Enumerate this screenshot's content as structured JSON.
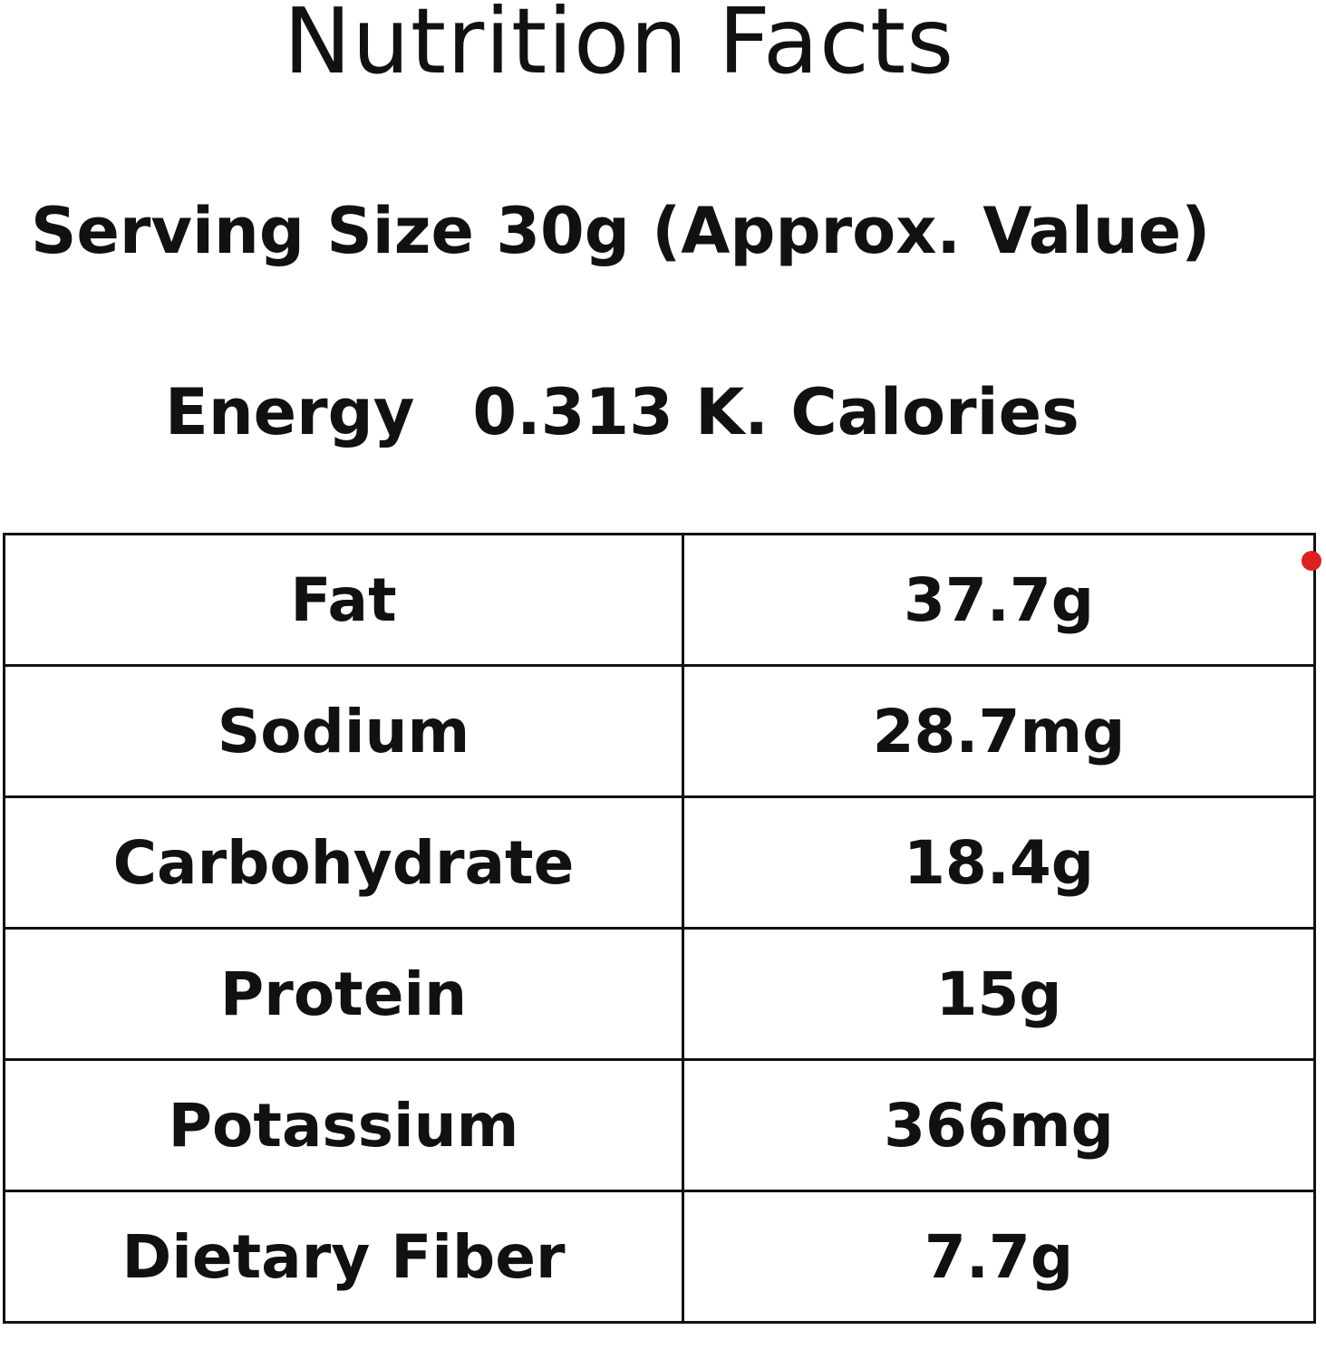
{
  "title": "Nutrition Facts",
  "serving_size": "Serving Size 30g (Approx. Value)",
  "energy": {
    "label": "Energy",
    "value": "0.313 K. Calories"
  },
  "nutrients": [
    {
      "name": "Fat",
      "amount": "37.7g"
    },
    {
      "name": "Sodium",
      "amount": "28.7mg"
    },
    {
      "name": "Carbohydrate",
      "amount": "18.4g"
    },
    {
      "name": "Protein",
      "amount": "15g"
    },
    {
      "name": "Potassium",
      "amount": "366mg"
    },
    {
      "name": "Dietary Fiber",
      "amount": "7.7g"
    }
  ],
  "colors": {
    "text": "#111111",
    "border": "#111111",
    "marker": "#e02020",
    "background": "#ffffff"
  }
}
